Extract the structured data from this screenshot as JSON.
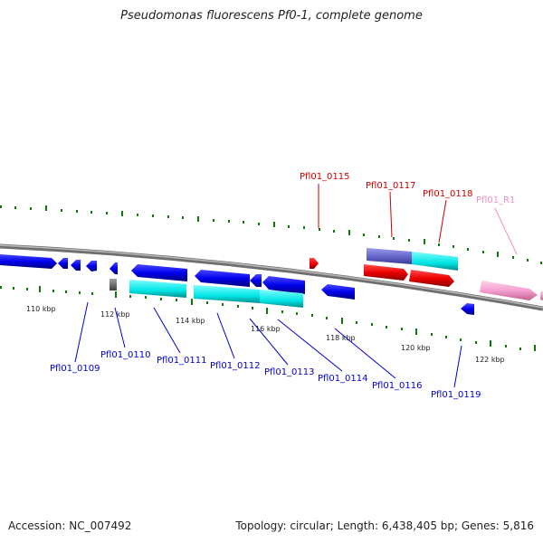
{
  "title": "Pseudomonas fluorescens Pf0-1, complete genome",
  "footer": {
    "accession": "Accession: NC_007492",
    "summary": "Topology: circular; Length: 6,438,405 bp; Genes: 5,816"
  },
  "colors": {
    "backbone": "#808080",
    "tick": "#0b7a0b",
    "forward_label": "#cc0000",
    "reverse_label": "#0000cc",
    "rna_label": "#f090c0",
    "gene_blue": "#0000ee",
    "gene_cyan": "#00e5e5",
    "gene_red": "#ee0000",
    "gene_purple": "#6a6ad0",
    "gene_gray": "#707070",
    "gene_pink": "#f5a0d0"
  },
  "kbp_ticks": [
    "110 kbp",
    "112 kbp",
    "114 kbp",
    "116 kbp",
    "118 kbp",
    "120 kbp",
    "122 kbp"
  ],
  "gene_labels": {
    "forward": [
      "Pfl01_0115",
      "Pfl01_0117",
      "Pfl01_0118"
    ],
    "rna": [
      "Pfl01_R1"
    ],
    "reverse": [
      "Pfl01_0109",
      "Pfl01_0110",
      "Pfl01_0111",
      "Pfl01_0112",
      "Pfl01_0113",
      "Pfl01_0114",
      "Pfl01_0116",
      "Pfl01_0119"
    ]
  }
}
